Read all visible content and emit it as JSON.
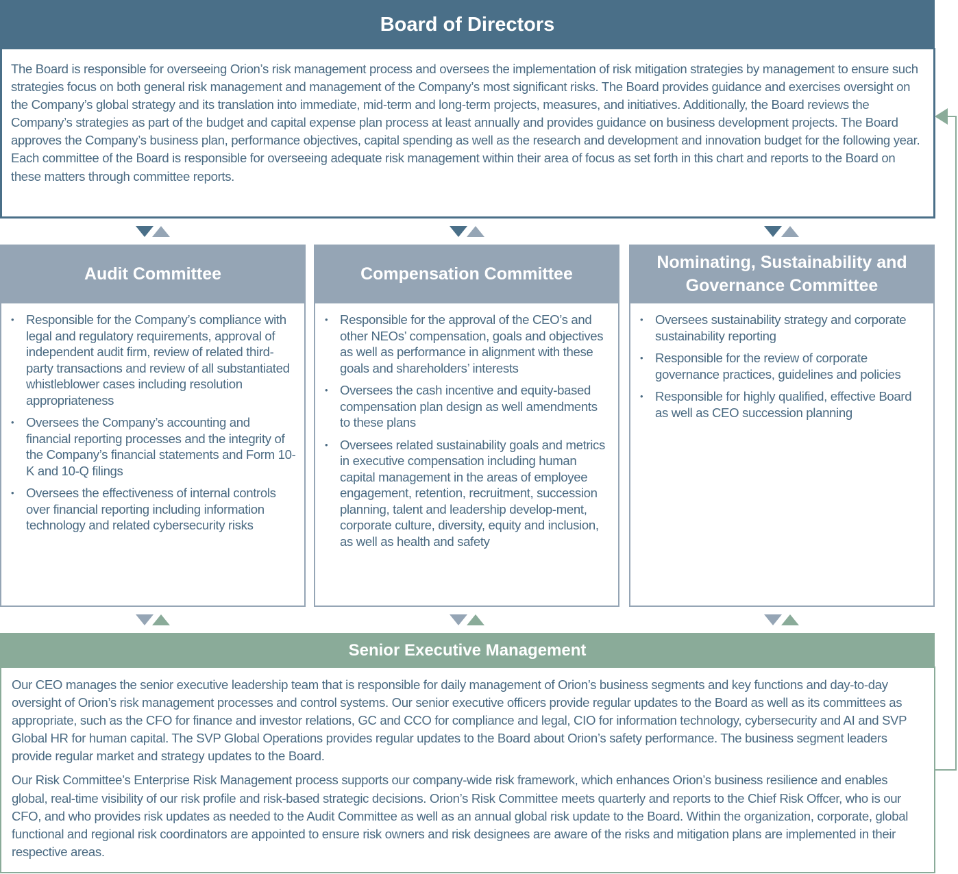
{
  "colors": {
    "board": "#4a6f88",
    "committee": "#95a5b5",
    "management": "#8aab99",
    "text": "#4a6a82"
  },
  "board": {
    "title": "Board of Directors",
    "text": "The Board is responsible for overseeing Orion’s risk management process and oversees the implementation of risk mitigation strategies by management to ensure such strategies focus on both general risk management and management of the Company’s most significant risks. The Board provides guidance and exercises oversight on the Company’s global strategy and its translation into immediate, mid-term and long-term projects, measures, and initiatives. Additionally, the Board reviews the Company’s strategies as part of the budget and capital expense plan process at least annually and provides guidance on business development projects. The Board approves the Company’s business plan, performance objectives, capital spending as well as the research and development and innovation budget for the following year. Each committee of the Board is responsible for overseeing adequate risk management within their area of focus as set forth in this chart and reports to the Board on these matters through committee reports."
  },
  "committees": [
    {
      "title": "Audit Committee",
      "items": [
        "Responsible for the Company’s compliance with legal and regulatory requirements, approval of independent audit firm, review of related third-party transactions and review of all substantiated whistleblower cases including resolution appropriateness",
        "Oversees the Company’s accounting and financial reporting processes and the integrity of the Company’s financial statements and Form 10-K and 10-Q filings",
        "Oversees the effectiveness of internal controls over financial reporting including information technology and related cybersecurity risks"
      ]
    },
    {
      "title": "Compensation Committee",
      "items": [
        "Responsible for the approval of the CEO’s and other NEOs’ compensation, goals and objectives as well as performance in alignment with these goals and shareholders’ interests",
        "Oversees the cash incentive and equity-based compensation plan design as well amendments to these plans",
        "Oversees related sustainability goals and metrics in executive compensation including human capital management in the areas of employee engagement, retention, recruitment, succession planning, talent and leadership develop-ment, corporate culture, diversity, equity and inclusion, as well as health and safety"
      ]
    },
    {
      "title": "Nominating, Sustainability and Governance Committee",
      "items": [
        "Oversees sustainability strategy and corporate sustainability reporting",
        "Responsible for the review of corporate governance practices, guidelines and policies",
        "Responsible for highly qualified, effective Board as well as CEO succession planning"
      ]
    }
  ],
  "management": {
    "title": "Senior Executive Management",
    "paragraphs": [
      "Our CEO manages the senior executive leadership team that is responsible for daily management of Orion’s business segments and key functions and day-to-day oversight of Orion’s risk management processes and control systems. Our senior executive officers provide regular updates to the Board as well as its committees as appropriate, such as the CFO for finance and investor relations, GC and CCO for compliance and legal, CIO for information technology, cybersecurity and AI and SVP Global HR for human capital. The SVP Global Operations provides regular updates to the Board about Orion’s safety performance. The business segment leaders provide regular market and strategy updates to the Board.",
      "Our Risk Committee’s Enterprise Risk Management process supports our company-wide risk framework, which enhances Orion’s business resilience and enables global, real-time visibility of our risk profile and risk-based strategic decisions. Orion’s Risk Committee meets quarterly and reports to the Chief Risk Offcer, who is our CFO, and who provides risk updates as needed to the Audit Committee as well as an annual global risk update to the Board. Within the organization, corporate, global functional and regional risk coordinators are appointed to ensure risk owners and risk designees are aware of the risks and mitigation plans are implemented in their respective areas."
    ]
  }
}
